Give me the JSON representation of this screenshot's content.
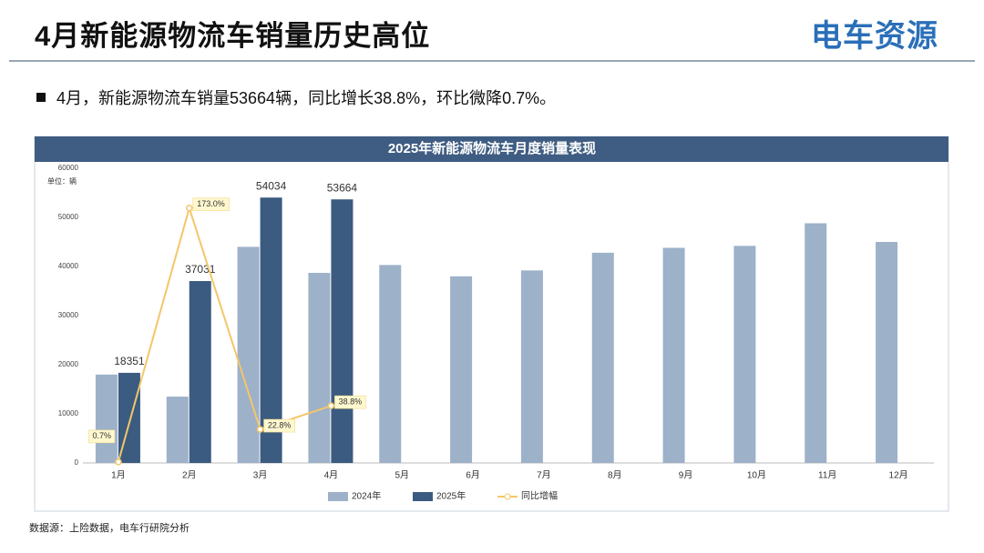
{
  "header": {
    "title": "4月新能源物流车销量历史高位",
    "logo": "电车资源"
  },
  "bullet": "4月，新能源物流车销量53664辆，同比增长38.8%，环比微降0.7%。",
  "source": "数据源：上险数据，电车行研院分析",
  "chart_data": {
    "type": "bar",
    "title": "2025年新能源物流车月度销量表现",
    "unit": "单位：辆",
    "categories": [
      "1月",
      "2月",
      "3月",
      "4月",
      "5月",
      "6月",
      "7月",
      "8月",
      "9月",
      "10月",
      "11月",
      "12月"
    ],
    "series": [
      {
        "name": "2024年",
        "color": "#9db1c9",
        "values": [
          18000,
          13500,
          44000,
          38700,
          40300,
          38000,
          39200,
          42800,
          43800,
          44200,
          48800,
          45000
        ]
      },
      {
        "name": "2025年",
        "color": "#3b5b80",
        "values": [
          18351,
          37031,
          54034,
          53664,
          null,
          null,
          null,
          null,
          null,
          null,
          null,
          null
        ]
      },
      {
        "name": "同比增幅",
        "color": "#f4c66a",
        "type": "line",
        "axis": "y2",
        "values": [
          0.7,
          173.0,
          22.8,
          38.8,
          null,
          null,
          null,
          null,
          null,
          null,
          null,
          null
        ],
        "value_labels": [
          "0.7%",
          "173.0%",
          "22.8%",
          "38.8%",
          null,
          null,
          null,
          null,
          null,
          null,
          null,
          null
        ]
      }
    ],
    "ylim": [
      0,
      60000
    ],
    "yticks": [
      0,
      10000,
      20000,
      30000,
      40000,
      50000,
      60000
    ],
    "y2lim": [
      0,
      200
    ],
    "grid": false,
    "legend": "bottom"
  }
}
